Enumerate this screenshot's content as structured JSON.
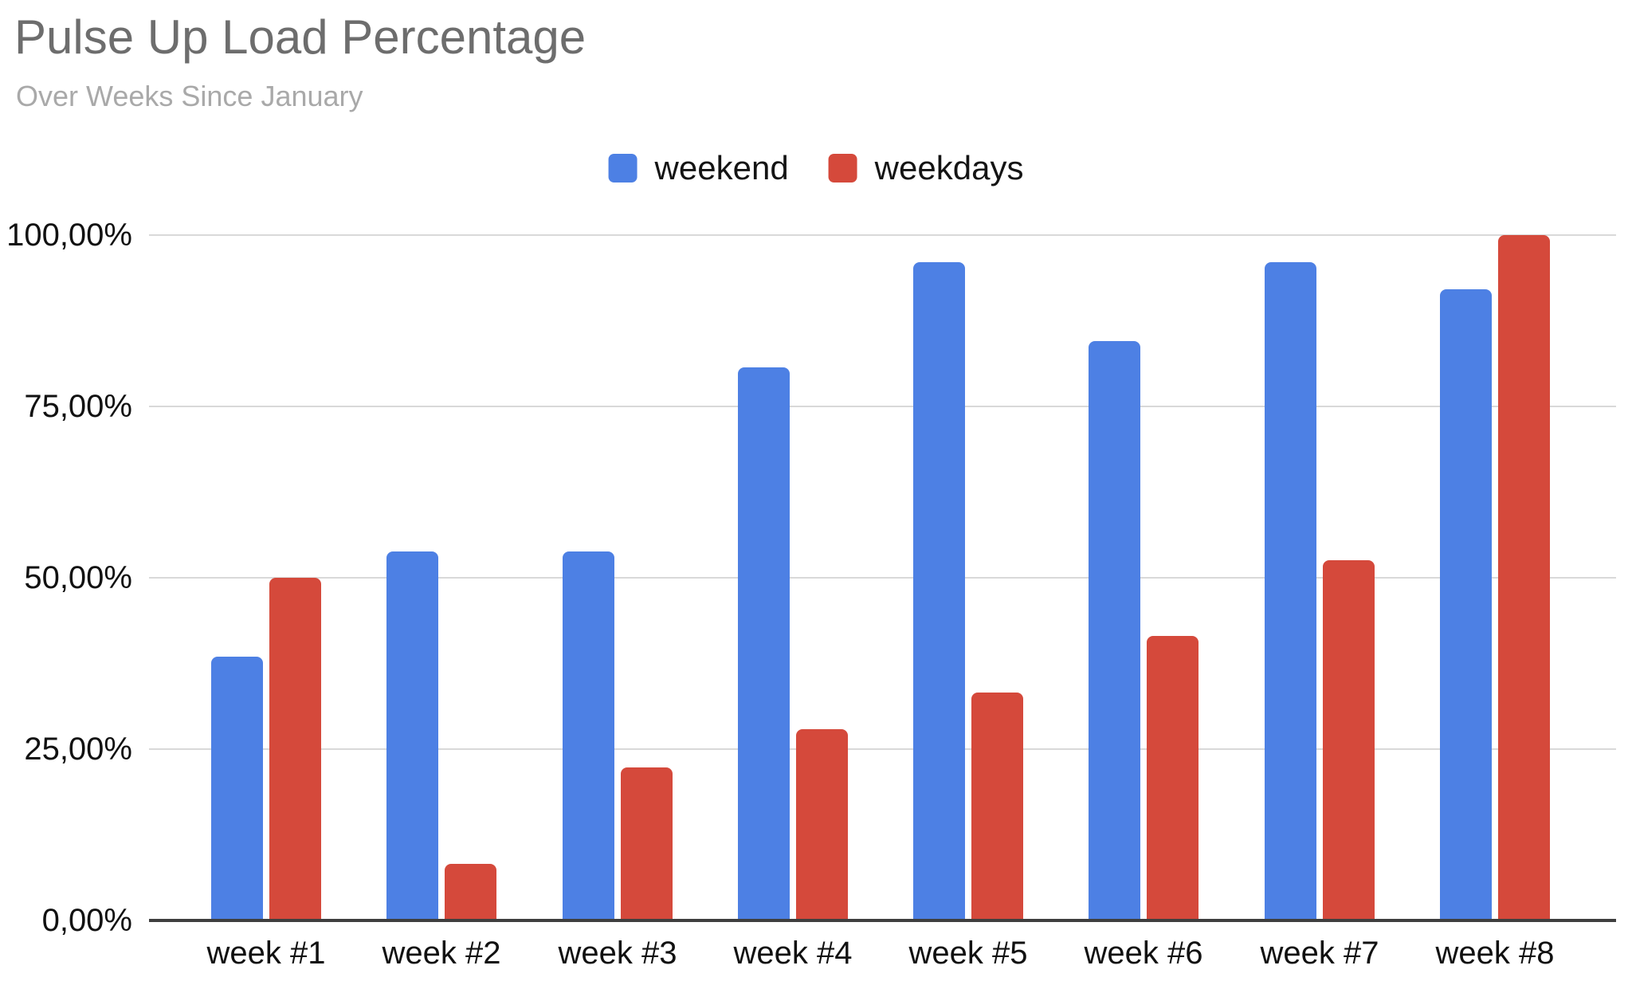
{
  "chart_data": {
    "type": "bar",
    "title": "Pulse Up Load Percentage",
    "subtitle": "Over Weeks Since January",
    "categories": [
      "week #1",
      "week #2",
      "week #3",
      "week #4",
      "week #5",
      "week #6",
      "week #7",
      "week #8"
    ],
    "series": [
      {
        "name": "weekend",
        "color": "#4D80E4",
        "values": [
          38.5,
          53.8,
          53.8,
          80.7,
          96.0,
          84.5,
          96.0,
          92.1
        ]
      },
      {
        "name": "weekdays",
        "color": "#D5493B",
        "values": [
          50.0,
          8.2,
          22.3,
          27.9,
          33.3,
          41.5,
          52.6,
          100.0
        ]
      }
    ],
    "yticks": [
      "0,00%",
      "25,00%",
      "50,00%",
      "75,00%",
      "100,00%"
    ],
    "ytick_values": [
      0,
      25,
      50,
      75,
      100
    ],
    "ylim": [
      0,
      100
    ],
    "grid": true,
    "legend_position": "top-center",
    "value_format": "percent-comma-decimal",
    "colors": {
      "title_text": "#6d6d6d",
      "subtitle_text": "#a9a9a9",
      "axis_label_text": "#111111",
      "gridline": "#d9d9d9",
      "axis_line": "#3f3f3f",
      "background": "#ffffff"
    }
  }
}
